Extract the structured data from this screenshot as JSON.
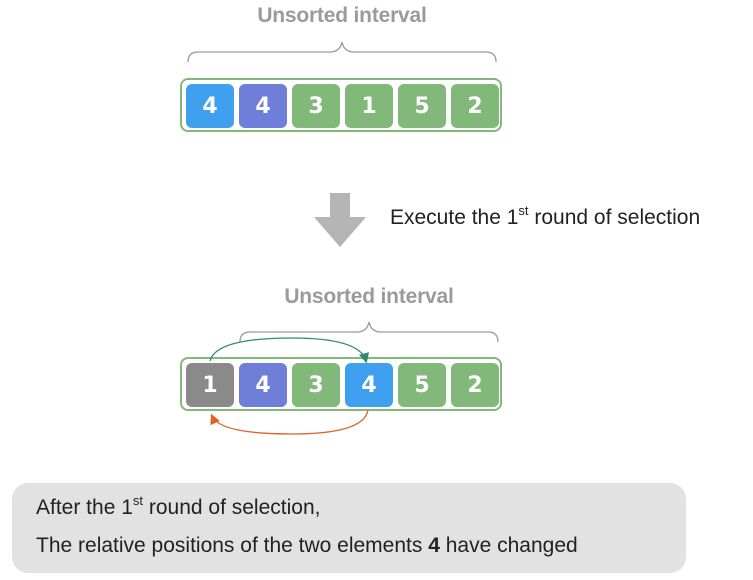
{
  "top": {
    "label": "Unsorted interval",
    "cells": [
      {
        "value": "4",
        "color": "#3fa0f0"
      },
      {
        "value": "4",
        "color": "#6f7ed9"
      },
      {
        "value": "3",
        "color": "#82b879"
      },
      {
        "value": "1",
        "color": "#82b879"
      },
      {
        "value": "5",
        "color": "#82b879"
      },
      {
        "value": "2",
        "color": "#82b879"
      }
    ]
  },
  "step": {
    "prefix": "Execute the 1",
    "sup": "st",
    "suffix": " round of selection"
  },
  "bottom": {
    "label": "Unsorted interval",
    "cells": [
      {
        "value": "1",
        "color": "#8a8a8a"
      },
      {
        "value": "4",
        "color": "#6f7ed9"
      },
      {
        "value": "3",
        "color": "#82b879"
      },
      {
        "value": "4",
        "color": "#3fa0f0"
      },
      {
        "value": "5",
        "color": "#82b879"
      },
      {
        "value": "2",
        "color": "#82b879"
      }
    ]
  },
  "note": {
    "line1_prefix": "After the 1",
    "line1_sup": "st",
    "line1_suffix": " round of selection,",
    "line2_prefix": "The relative positions of the two elements ",
    "line2_bold": "4",
    "line2_suffix": " have changed"
  },
  "colors": {
    "green": "#82b879",
    "arrow_top": "#2e8b6e",
    "arrow_bottom": "#e0622a",
    "down_arrow": "#b5b5b5"
  }
}
